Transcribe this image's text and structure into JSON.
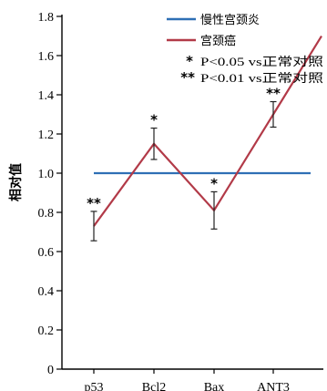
{
  "chart_data": {
    "type": "line",
    "title": "",
    "ylabel": "相对值",
    "xlabel": "",
    "ylim": [
      0,
      1.8
    ],
    "yticks": [
      0,
      0.2,
      0.4,
      0.6,
      0.8,
      1.0,
      1.2,
      1.4,
      1.6,
      1.8
    ],
    "ytick_labels": [
      "0",
      "0.2",
      "0.4",
      "0.6",
      "0.8",
      "1.0",
      "1.2",
      "1.4",
      "1.6",
      "1.8"
    ],
    "categories": [
      "p53",
      "Bcl2",
      "Bax",
      "ANT3"
    ],
    "grid": false,
    "legend_position": "top-right",
    "series": [
      {
        "name": "慢性宫颈炎",
        "color": "#2e6fb5",
        "values": [
          1.0,
          1.0,
          1.0,
          1.0
        ]
      },
      {
        "name": "宫颈癌",
        "color": "#b23a48",
        "values": [
          0.73,
          1.15,
          0.81,
          1.3
        ],
        "error": [
          0.075,
          0.08,
          0.095,
          0.065
        ],
        "significance": [
          "**",
          "*",
          "*",
          "**"
        ]
      }
    ],
    "annotations": [
      {
        "marker": "*",
        "text": "P<0.05 vs正常对照"
      },
      {
        "marker": "**",
        "text": "P<0.01 vs正常对照"
      }
    ]
  }
}
